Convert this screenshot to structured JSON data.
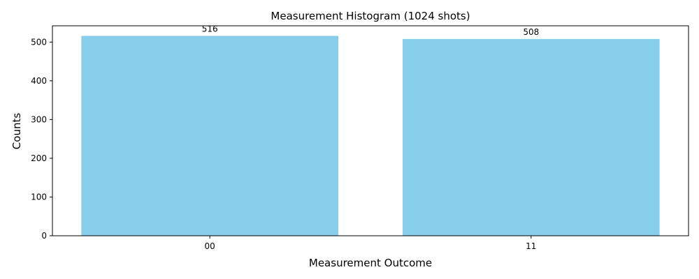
{
  "chart_data": {
    "type": "bar",
    "title": "Measurement Histogram (1024 shots)",
    "xlabel": "Measurement Outcome",
    "ylabel": "Counts",
    "categories": [
      "00",
      "11"
    ],
    "values": [
      516,
      508
    ],
    "data_labels": [
      "516",
      "508"
    ],
    "ylim": [
      0,
      542
    ],
    "yticks": [
      0,
      100,
      200,
      300,
      400,
      500
    ],
    "ytick_labels": [
      "0",
      "100",
      "200",
      "300",
      "400",
      "500"
    ],
    "bar_color": "#87CEEB",
    "grid": false,
    "legend": "none"
  }
}
